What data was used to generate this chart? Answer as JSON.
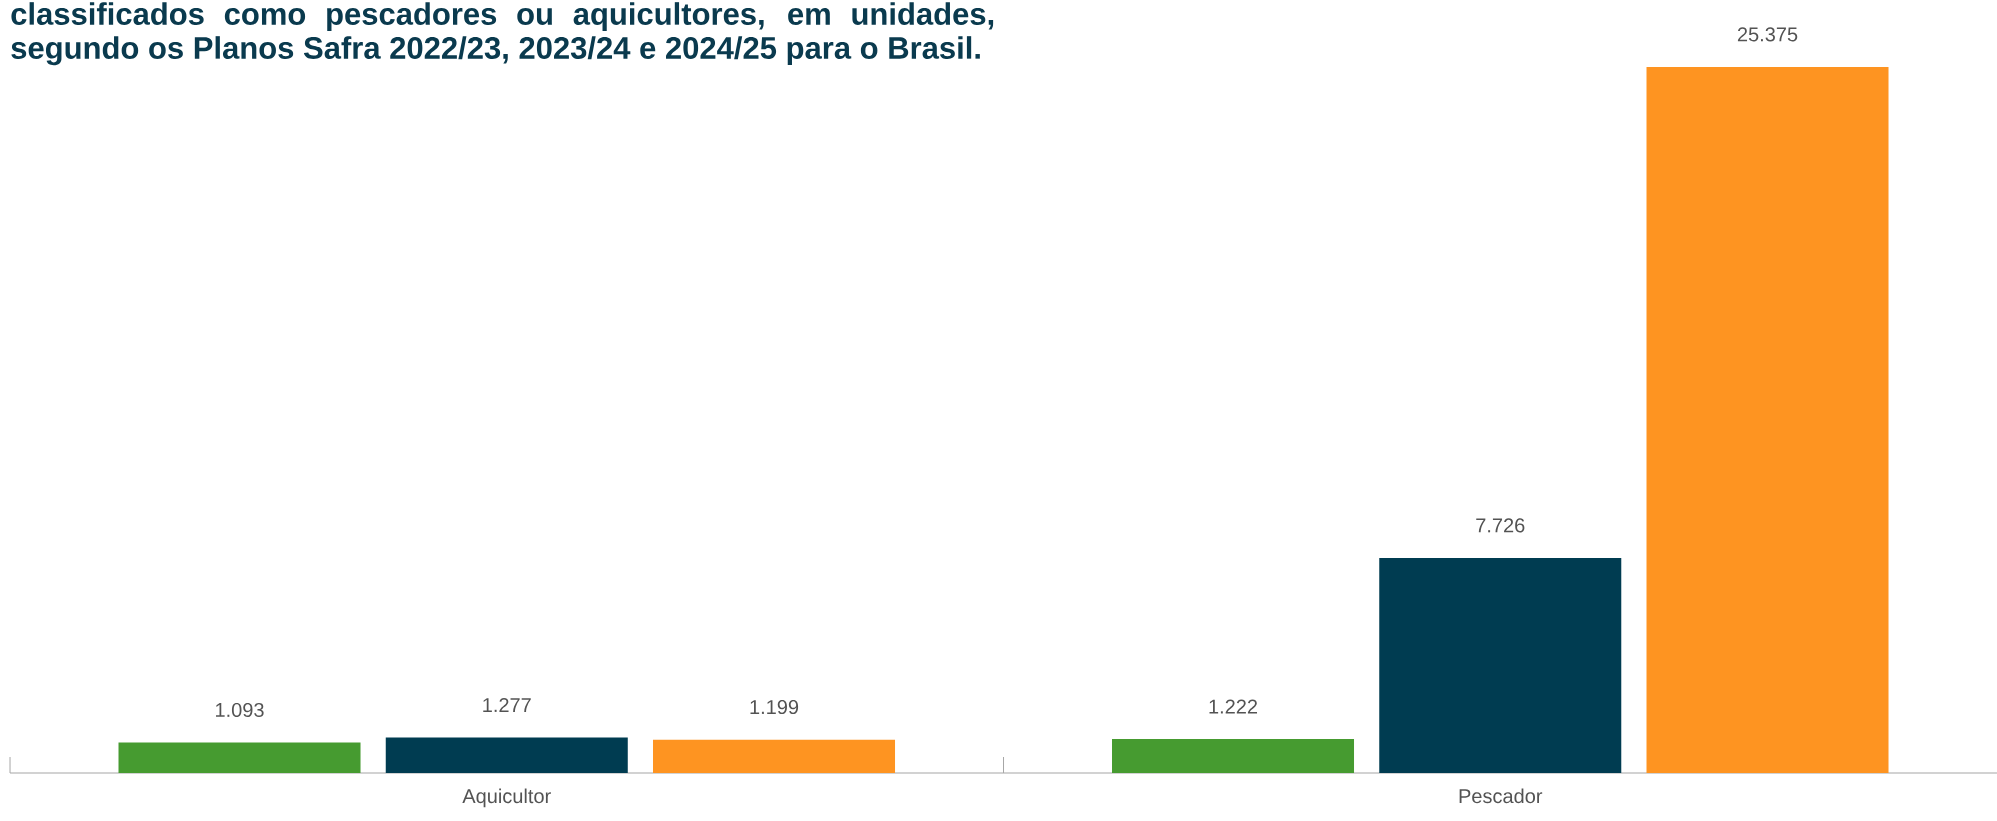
{
  "chart_data": {
    "type": "bar",
    "title": "classificados como pescadores ou aquicultores, em unidades, segundo os Planos Safra 2022/23, 2023/24 e 2024/25 para o Brasil.",
    "categories": [
      "Aquicultor",
      "Pescador"
    ],
    "series": [
      {
        "color": "#469b30",
        "values": [
          1093,
          1222
        ],
        "value_labels": [
          "1.093",
          "1.222"
        ]
      },
      {
        "color": "#003c51",
        "values": [
          1277,
          7726
        ],
        "value_labels": [
          "1.277",
          "7.726"
        ]
      },
      {
        "color": "#fe9421",
        "values": [
          1199,
          25375
        ],
        "value_labels": [
          "1.199",
          "25.375"
        ]
      }
    ]
  }
}
